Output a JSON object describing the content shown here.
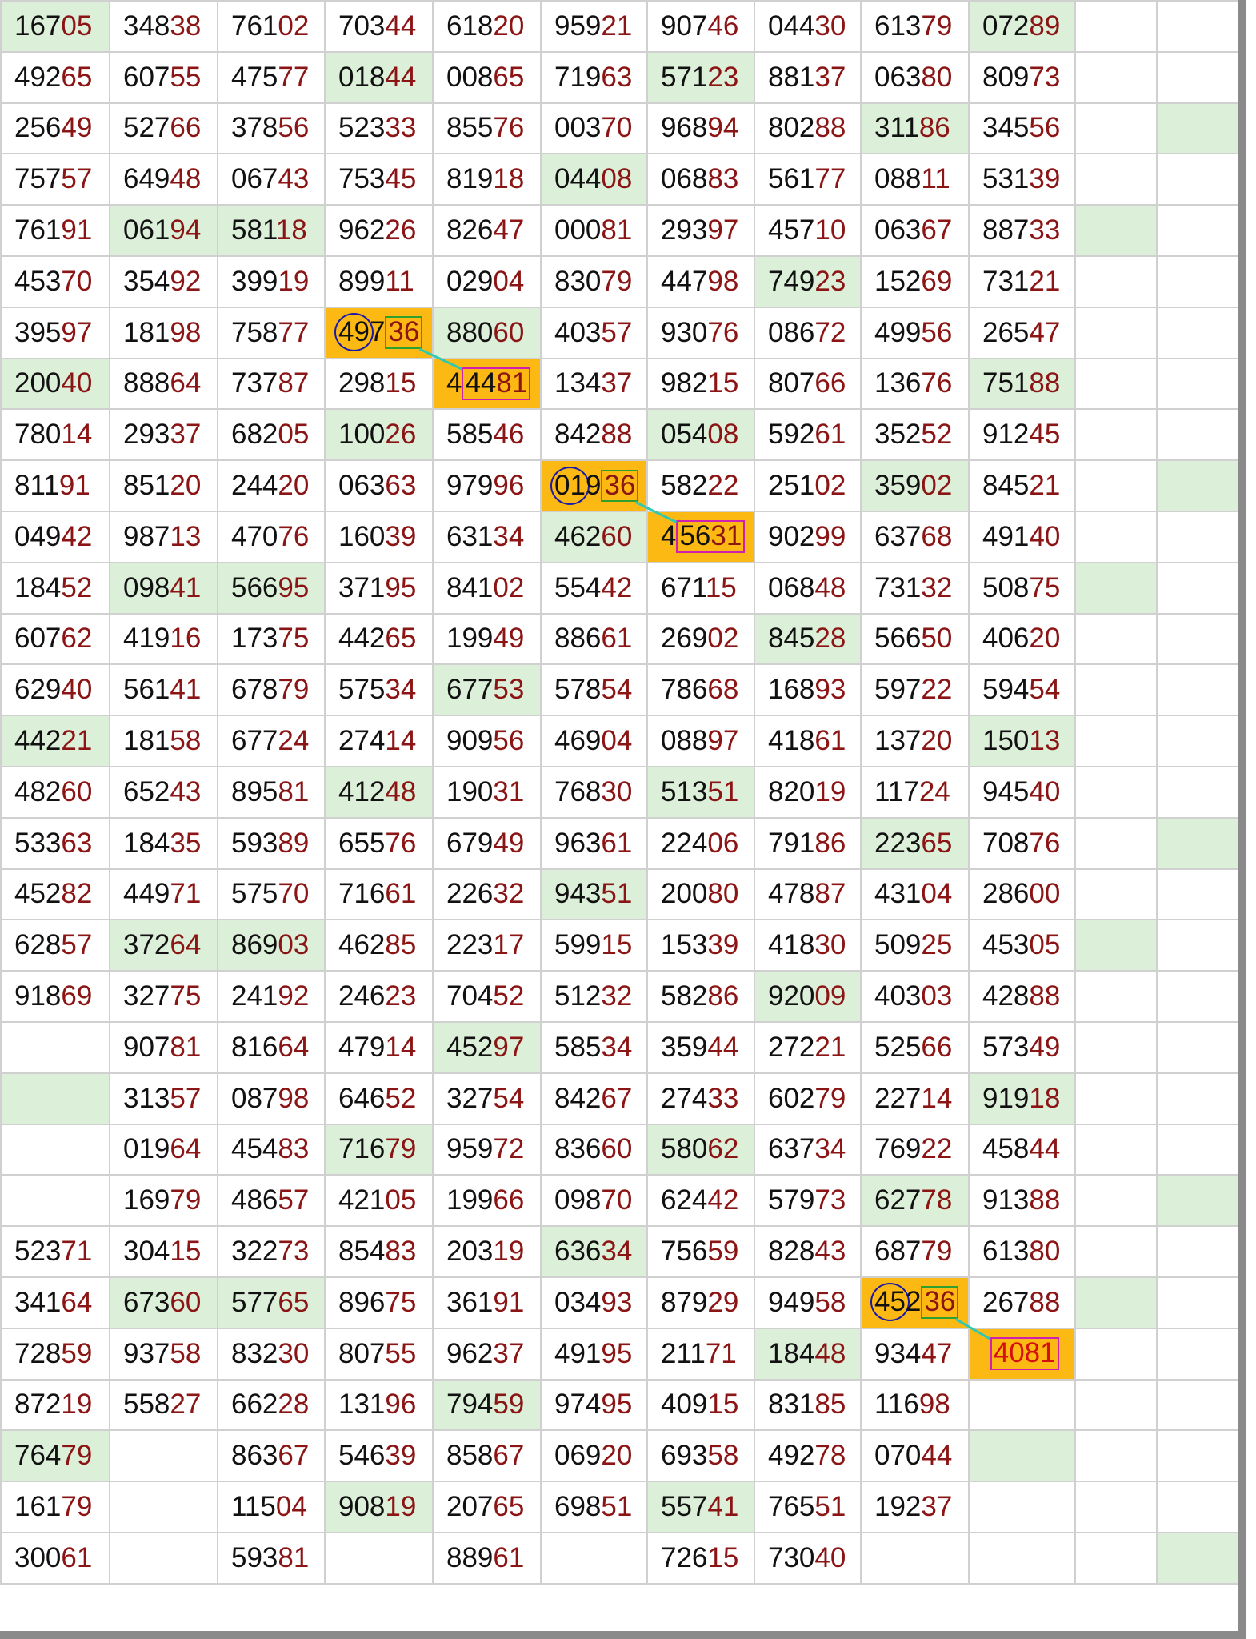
{
  "colors": {
    "highlight_green": "#dcefd8",
    "highlight_orange": "#fdb913",
    "tail_digits": "#8b1414",
    "circle": "#1a1aa8",
    "box_green": "#2ea02e",
    "box_magenta": "#d020b0",
    "link_line": "#30c8b0"
  },
  "rows": [
    {
      "values": [
        "16705",
        "34838",
        "76102",
        "70344",
        "61820",
        "95921",
        "90746",
        "04430",
        "61379",
        "07289",
        "",
        ""
      ],
      "fill": [
        "g",
        "",
        "",
        "",
        "",
        "",
        "",
        "",
        "",
        "g",
        "",
        ""
      ]
    },
    {
      "values": [
        "49265",
        "60755",
        "47577",
        "01844",
        "00865",
        "71963",
        "57123",
        "88137",
        "06380",
        "80973",
        "",
        ""
      ],
      "fill": [
        "",
        "",
        "",
        "g",
        "",
        "",
        "g",
        "",
        "",
        "",
        "",
        ""
      ]
    },
    {
      "values": [
        "25649",
        "52766",
        "37856",
        "52333",
        "85576",
        "00370",
        "96894",
        "80288",
        "31186",
        "34556",
        "",
        ""
      ],
      "fill": [
        "",
        "",
        "",
        "",
        "",
        "",
        "",
        "",
        "g",
        "",
        "",
        "g"
      ]
    },
    {
      "values": [
        "75757",
        "64948",
        "06743",
        "75345",
        "81918",
        "04408",
        "06883",
        "56177",
        "08811",
        "53139",
        "",
        ""
      ],
      "fill": [
        "",
        "",
        "",
        "",
        "",
        "g",
        "",
        "",
        "",
        "",
        "",
        ""
      ]
    },
    {
      "values": [
        "76191",
        "06194",
        "58118",
        "96226",
        "82647",
        "00081",
        "29397",
        "45710",
        "06367",
        "88733",
        "",
        ""
      ],
      "fill": [
        "",
        "g",
        "g",
        "",
        "",
        "",
        "",
        "",
        "",
        "",
        "g",
        ""
      ]
    },
    {
      "values": [
        "45370",
        "35492",
        "39919",
        "89911",
        "02904",
        "83079",
        "44798",
        "74923",
        "15269",
        "73121",
        "",
        ""
      ],
      "fill": [
        "",
        "",
        "",
        "",
        "",
        "",
        "",
        "g",
        "",
        "",
        "",
        ""
      ]
    },
    {
      "values": [
        "39597",
        "18198",
        "75877",
        "49736",
        "88060",
        "40357",
        "93076",
        "08672",
        "49956",
        "26547",
        "",
        ""
      ],
      "fill": [
        "",
        "",
        "",
        "o",
        "g",
        "",
        "",
        "",
        "",
        "",
        "",
        ""
      ]
    },
    {
      "values": [
        "20040",
        "88864",
        "73787",
        "29815",
        "44481",
        "13437",
        "98215",
        "80766",
        "13676",
        "75188",
        "",
        ""
      ],
      "fill": [
        "g",
        "",
        "",
        "",
        "o",
        "",
        "",
        "",
        "",
        "g",
        "",
        ""
      ]
    },
    {
      "values": [
        "78014",
        "29337",
        "68205",
        "10026",
        "58546",
        "84288",
        "05408",
        "59261",
        "35252",
        "91245",
        "",
        ""
      ],
      "fill": [
        "",
        "",
        "",
        "g",
        "",
        "",
        "g",
        "",
        "",
        "",
        "",
        ""
      ]
    },
    {
      "values": [
        "81191",
        "85120",
        "24420",
        "06363",
        "97996",
        "01936",
        "58222",
        "25102",
        "35902",
        "84521",
        "",
        ""
      ],
      "fill": [
        "",
        "",
        "",
        "",
        "",
        "o",
        "",
        "",
        "g",
        "",
        "",
        "g"
      ]
    },
    {
      "values": [
        "04942",
        "98713",
        "47076",
        "16039",
        "63134",
        "46260",
        "45631",
        "90299",
        "63768",
        "49140",
        "",
        ""
      ],
      "fill": [
        "",
        "",
        "",
        "",
        "",
        "g",
        "o",
        "",
        "",
        "",
        "",
        ""
      ]
    },
    {
      "values": [
        "18452",
        "09841",
        "56695",
        "37195",
        "84102",
        "55442",
        "67115",
        "06848",
        "73132",
        "50875",
        "",
        ""
      ],
      "fill": [
        "",
        "g",
        "g",
        "",
        "",
        "",
        "",
        "",
        "",
        "",
        "g",
        ""
      ]
    },
    {
      "values": [
        "60762",
        "41916",
        "17375",
        "44265",
        "19949",
        "88661",
        "26902",
        "84528",
        "56650",
        "40620",
        "",
        ""
      ],
      "fill": [
        "",
        "",
        "",
        "",
        "",
        "",
        "",
        "g",
        "",
        "",
        "",
        ""
      ]
    },
    {
      "values": [
        "62940",
        "56141",
        "67879",
        "57534",
        "67753",
        "57854",
        "78668",
        "16893",
        "59722",
        "59454",
        "",
        ""
      ],
      "fill": [
        "",
        "",
        "",
        "",
        "g",
        "",
        "",
        "",
        "",
        "",
        "",
        ""
      ]
    },
    {
      "values": [
        "44221",
        "18158",
        "67724",
        "27414",
        "90956",
        "46904",
        "08897",
        "41861",
        "13720",
        "15013",
        "",
        ""
      ],
      "fill": [
        "g",
        "",
        "",
        "",
        "",
        "",
        "",
        "",
        "",
        "g",
        "",
        ""
      ]
    },
    {
      "values": [
        "48260",
        "65243",
        "89581",
        "41248",
        "19031",
        "76830",
        "51351",
        "82019",
        "11724",
        "94540",
        "",
        ""
      ],
      "fill": [
        "",
        "",
        "",
        "g",
        "",
        "",
        "g",
        "",
        "",
        "",
        "",
        ""
      ]
    },
    {
      "values": [
        "53363",
        "18435",
        "59389",
        "65576",
        "67949",
        "96361",
        "22406",
        "79186",
        "22365",
        "70876",
        "",
        ""
      ],
      "fill": [
        "",
        "",
        "",
        "",
        "",
        "",
        "",
        "",
        "g",
        "",
        "",
        "g"
      ]
    },
    {
      "values": [
        "45282",
        "44971",
        "57570",
        "71661",
        "22632",
        "94351",
        "20080",
        "47887",
        "43104",
        "28600",
        "",
        ""
      ],
      "fill": [
        "",
        "",
        "",
        "",
        "",
        "g",
        "",
        "",
        "",
        "",
        "",
        ""
      ]
    },
    {
      "values": [
        "62857",
        "37264",
        "86903",
        "46285",
        "22317",
        "59915",
        "15339",
        "41830",
        "50925",
        "45305",
        "",
        ""
      ],
      "fill": [
        "",
        "g",
        "g",
        "",
        "",
        "",
        "",
        "",
        "",
        "",
        "g",
        ""
      ]
    },
    {
      "values": [
        "91869",
        "32775",
        "24192",
        "24623",
        "70452",
        "51232",
        "58286",
        "92009",
        "40303",
        "42888",
        "",
        ""
      ],
      "fill": [
        "",
        "",
        "",
        "",
        "",
        "",
        "",
        "g",
        "",
        "",
        "",
        ""
      ]
    },
    {
      "values": [
        "",
        "90781",
        "81664",
        "47914",
        "45297",
        "58534",
        "35944",
        "27221",
        "52566",
        "57349",
        "",
        ""
      ],
      "fill": [
        "",
        "",
        "",
        "",
        "g",
        "",
        "",
        "",
        "",
        "",
        "",
        ""
      ]
    },
    {
      "values": [
        "",
        "31357",
        "08798",
        "64652",
        "32754",
        "84267",
        "27433",
        "60279",
        "22714",
        "91918",
        "",
        ""
      ],
      "fill": [
        "g",
        "",
        "",
        "",
        "",
        "",
        "",
        "",
        "",
        "g",
        "",
        ""
      ]
    },
    {
      "values": [
        "",
        "01964",
        "45483",
        "71679",
        "95972",
        "83660",
        "58062",
        "63734",
        "76922",
        "45844",
        "",
        ""
      ],
      "fill": [
        "",
        "",
        "",
        "g",
        "",
        "",
        "g",
        "",
        "",
        "",
        "",
        ""
      ]
    },
    {
      "values": [
        "",
        "16979",
        "48657",
        "42105",
        "19966",
        "09870",
        "62442",
        "57973",
        "62778",
        "91388",
        "",
        ""
      ],
      "fill": [
        "",
        "",
        "",
        "",
        "",
        "",
        "",
        "",
        "g",
        "",
        "",
        "g"
      ]
    },
    {
      "values": [
        "52371",
        "30415",
        "32273",
        "85483",
        "20319",
        "63634",
        "75659",
        "82843",
        "68779",
        "61380",
        "",
        ""
      ],
      "fill": [
        "",
        "",
        "",
        "",
        "",
        "g",
        "",
        "",
        "",
        "",
        "",
        ""
      ]
    },
    {
      "values": [
        "34164",
        "67360",
        "57765",
        "89675",
        "36191",
        "03493",
        "87929",
        "94958",
        "45236",
        "26788",
        "",
        ""
      ],
      "fill": [
        "",
        "g",
        "g",
        "",
        "",
        "",
        "",
        "",
        "o",
        "",
        "g",
        ""
      ]
    },
    {
      "values": [
        "72859",
        "93758",
        "83230",
        "80755",
        "96237",
        "49195",
        "21171",
        "18448",
        "93447",
        "4081",
        "",
        ""
      ],
      "fill": [
        "",
        "",
        "",
        "",
        "",
        "",
        "",
        "g",
        "",
        "o",
        "",
        ""
      ]
    },
    {
      "values": [
        "87219",
        "55827",
        "66228",
        "13196",
        "79459",
        "97495",
        "40915",
        "83185",
        "11698",
        "",
        "",
        ""
      ],
      "fill": [
        "",
        "",
        "",
        "",
        "g",
        "",
        "",
        "",
        "",
        "",
        "",
        ""
      ]
    },
    {
      "values": [
        "76479",
        "",
        "86367",
        "54639",
        "85867",
        "06920",
        "69358",
        "49278",
        "07044",
        "",
        "",
        ""
      ],
      "fill": [
        "g",
        "",
        "",
        "",
        "",
        "",
        "",
        "",
        "",
        "g",
        "",
        ""
      ]
    },
    {
      "values": [
        "16179",
        "",
        "11504",
        "90819",
        "20765",
        "69851",
        "55741",
        "76551",
        "19237",
        "",
        "",
        ""
      ],
      "fill": [
        "",
        "",
        "",
        "g",
        "",
        "",
        "g",
        "",
        "",
        "",
        "",
        ""
      ]
    },
    {
      "values": [
        "30061",
        "",
        "59381",
        "",
        "88961",
        "",
        "72615",
        "73040",
        "",
        "",
        "",
        ""
      ],
      "fill": [
        "",
        "",
        "",
        "",
        "",
        "",
        "",
        "",
        "",
        "",
        "",
        "g"
      ]
    }
  ],
  "annotations": {
    "sources": [
      [
        6,
        3
      ],
      [
        9,
        5
      ],
      [
        25,
        8
      ]
    ],
    "targets": [
      [
        7,
        4
      ],
      [
        10,
        6
      ],
      [
        26,
        9
      ]
    ]
  }
}
